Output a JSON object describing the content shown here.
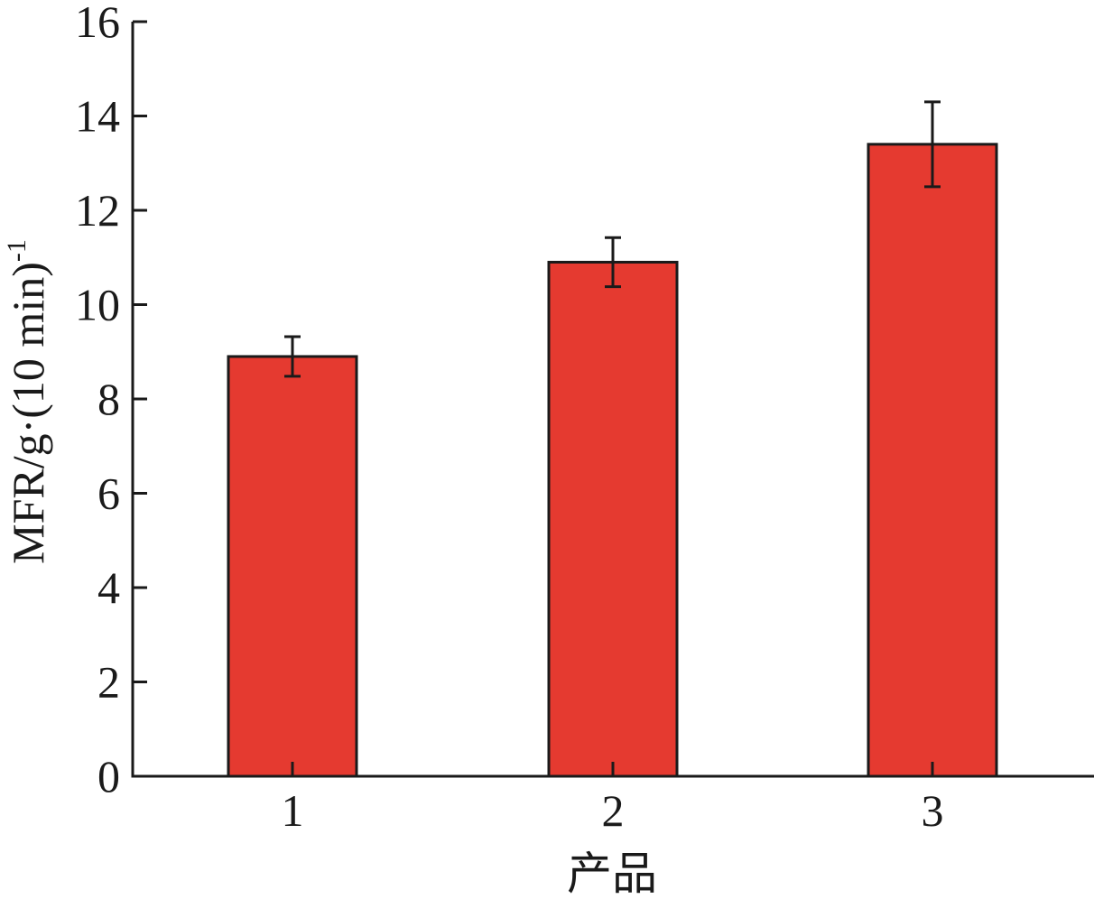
{
  "chart_data": {
    "type": "bar",
    "categories": [
      "1",
      "2",
      "3"
    ],
    "values": [
      8.9,
      10.9,
      13.4
    ],
    "errors": [
      0.42,
      0.52,
      0.9
    ],
    "xlabel": "产品",
    "ylabel": "MFR/g·(10 min)",
    "ylabel_sup": "-1",
    "ylim": [
      0,
      16
    ],
    "yticks": [
      0,
      2,
      4,
      6,
      8,
      10,
      12,
      14,
      16
    ],
    "grid": false,
    "bar_color": "#e53a30"
  }
}
